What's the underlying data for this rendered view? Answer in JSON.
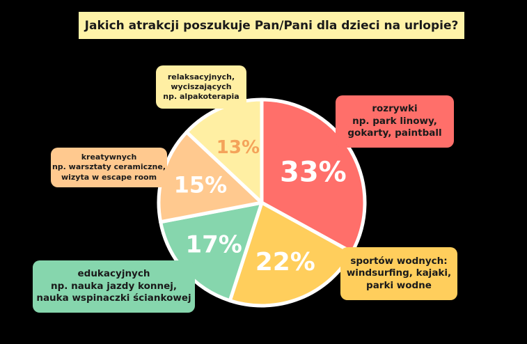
{
  "title": "Jakich atrakcji poszukuje Pan/Pani dla dzieci na urlopie?",
  "chart_data": {
    "type": "pie",
    "title": "Jakich atrakcji poszukuje Pan/Pani dla dzieci na urlopie?",
    "slices": [
      {
        "name": "rozrywki",
        "label_lines": [
          "rozrywki",
          "np. park linowy,",
          "gokarty, paintball"
        ],
        "value": 33,
        "label": "33%",
        "color": "#FF6F6A",
        "box_color": "#FF6F6A"
      },
      {
        "name": "sportów wodnych",
        "label_lines": [
          "sportów wodnych:",
          "windsurfing, kajaki,",
          "parki wodne"
        ],
        "value": 22,
        "label": "22%",
        "color": "#FFCE5C",
        "box_color": "#FFCE5C"
      },
      {
        "name": "edukacyjnych",
        "label_lines": [
          "edukacyjnych",
          "np. nauka jazdy konnej,",
          "nauka wspinaczki ściankowej"
        ],
        "value": 17,
        "label": "17%",
        "color": "#86D6AD",
        "box_color": "#86D6AD"
      },
      {
        "name": "kreatywnych",
        "label_lines": [
          "kreatywnych",
          "np. warsztaty ceramiczne,",
          "wizyta w escape room"
        ],
        "value": 15,
        "label": "15%",
        "color": "#FFC98F",
        "box_color": "#FFC98F"
      },
      {
        "name": "relaksacyjnych",
        "label_lines": [
          "relaksacyjnych,",
          "wyciszających",
          "np. alpakoterapia"
        ],
        "value": 13,
        "label": "13%",
        "color": "#FFEFA3",
        "box_color": "#FFEFA3"
      }
    ],
    "colors": {
      "text_on_slice": "#FFFFFF",
      "text_on_light_slice": "#F4A35A",
      "separator": "#FFFFFF",
      "background": "#000000",
      "title_box": "#FFF3A8"
    }
  }
}
